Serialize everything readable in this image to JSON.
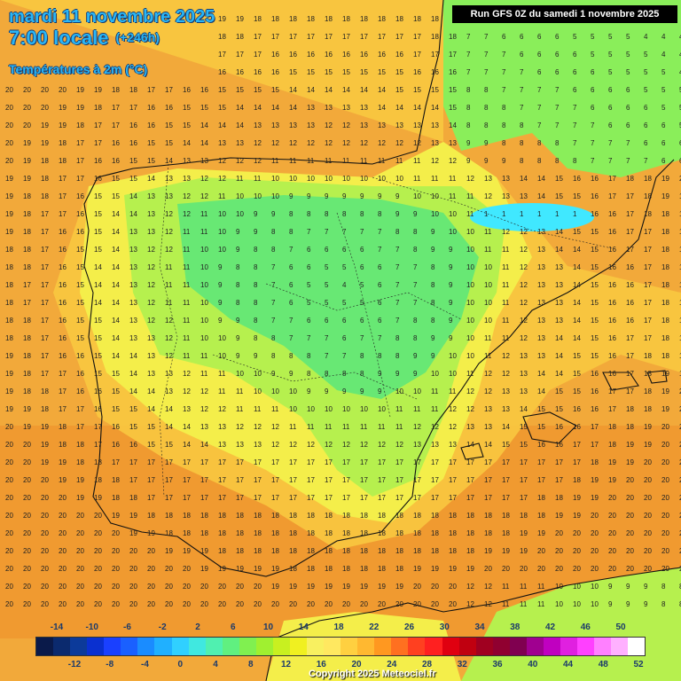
{
  "header": {
    "date_line": "mardi 11 novembre 2025",
    "time_line": "7:00 locale",
    "lead_time": "(+246h)",
    "parameter": "Températures à 2m (°C)"
  },
  "run_info": "Run GFS 0Z du samedi 1 novembre 2025",
  "copyright": "Copyright 2025 Meteociel.fr",
  "legend": {
    "top_labels": [
      "-14",
      "-10",
      "-6",
      "-2",
      "2",
      "6",
      "10",
      "14",
      "18",
      "22",
      "26",
      "30",
      "34",
      "38",
      "42",
      "46",
      "50"
    ],
    "bottom_labels": [
      "-12",
      "-8",
      "-4",
      "0",
      "4",
      "8",
      "12",
      "16",
      "20",
      "24",
      "28",
      "32",
      "36",
      "40",
      "44",
      "48",
      "52"
    ],
    "colors": [
      "#0a1a4a",
      "#0b2a6e",
      "#0c3a9a",
      "#0a30d0",
      "#1a40ff",
      "#1a60ff",
      "#1a8cff",
      "#20b0ff",
      "#30d0ff",
      "#40e8e0",
      "#50f0b0",
      "#60f080",
      "#80f050",
      "#a0f030",
      "#c8f020",
      "#f0f020",
      "#f8f060",
      "#ffe860",
      "#ffd040",
      "#ffb830",
      "#ff9820",
      "#ff7020",
      "#ff4020",
      "#ff2020",
      "#e00010",
      "#c00010",
      "#a00020",
      "#900030",
      "#800050",
      "#a00090",
      "#c000c0",
      "#e020e0",
      "#ff40ff",
      "#ff80ff",
      "#ffb0ff",
      "#ffffff"
    ]
  },
  "map_data": {
    "labels_dense": "Grid of temperature values in °C across the Iberian Peninsula",
    "sample_values": {
      "north_atlantic": "15-17",
      "central_iberia": "4-10",
      "pyrenees": "0-5",
      "south_coast": "17-19",
      "mediterranean": "15-17",
      "north_africa": "6-15"
    },
    "palette": {
      "cold": "#50e890",
      "cool": "#a8f050",
      "mild": "#f6ec48",
      "warm": "#f8c840",
      "warmer": "#f2a93a",
      "cyan": "#40e8ff"
    }
  }
}
